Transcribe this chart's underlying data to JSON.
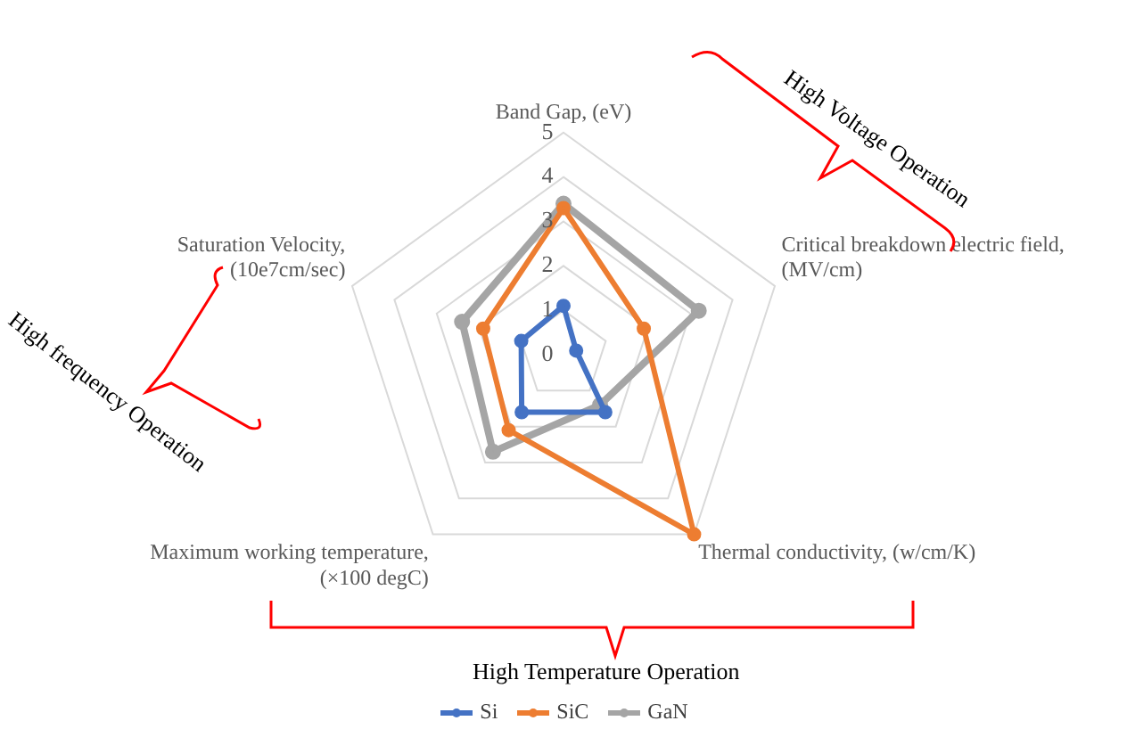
{
  "chart_data": {
    "type": "radar",
    "categories": [
      "Band Gap, (eV)",
      "Critical breakdown electric field,\n(MV/cm)",
      "Thermal conductivity, (w/cm/K)",
      "Maximum working temperature,\n(×100 degC)",
      "Saturation Velocity,\n(10e7cm/sec)"
    ],
    "series": [
      {
        "name": "Si",
        "color": "#4472c4",
        "values": [
          1.1,
          0.3,
          1.6,
          1.6,
          1.0
        ]
      },
      {
        "name": "SiC",
        "color": "#ed7d31",
        "values": [
          3.3,
          1.9,
          5.0,
          2.1,
          1.9
        ]
      },
      {
        "name": "GaN",
        "color": "#a5a5a5",
        "values": [
          3.4,
          3.2,
          1.4,
          2.7,
          2.4
        ]
      }
    ],
    "ylim": [
      0,
      5
    ],
    "yticks": [
      0,
      1,
      2,
      3,
      4,
      5
    ],
    "grid": true,
    "legend": "bottom",
    "marker": "circle",
    "annotations": [
      "High Voltage Operation",
      "High frequency Operation",
      "High Temperature Operation"
    ]
  }
}
